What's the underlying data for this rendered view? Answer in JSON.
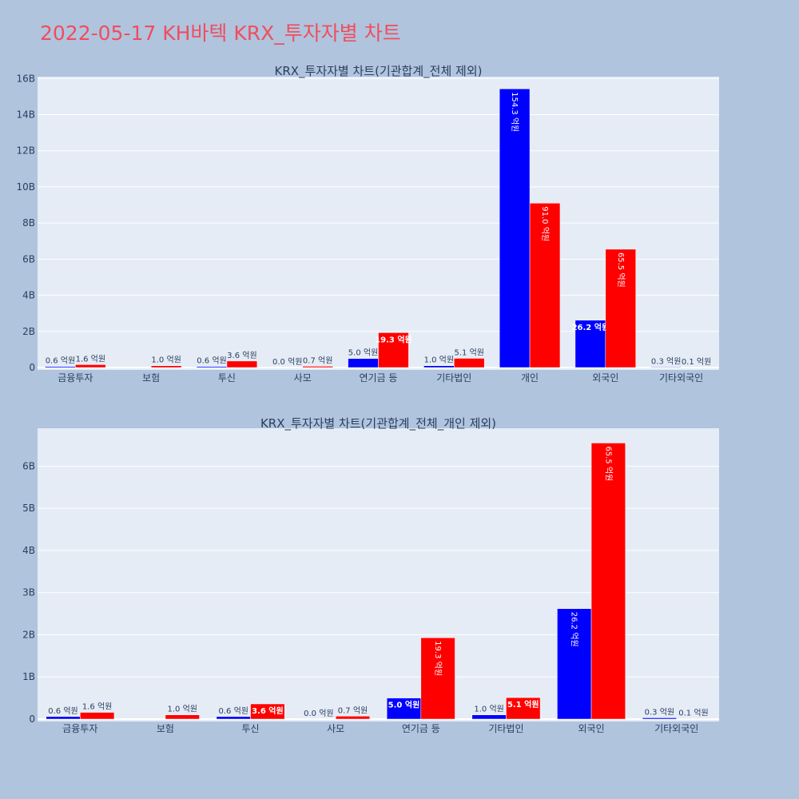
{
  "page": {
    "title": "2022-05-17 KH바텍 KRX_투자자별 차트"
  },
  "colors": {
    "background": "#b0c4de",
    "plot_bg": "#e5ecf6",
    "title": "#ef4e5f",
    "text": "#2a3f5f",
    "buy": "#0000ff",
    "sell": "#ff0000"
  },
  "chart_data": [
    {
      "type": "bar",
      "title": "KRX_투자자별 차트(기관합계_전체 제외)",
      "categories": [
        "금융투자",
        "보험",
        "투신",
        "사모",
        "연기금 등",
        "기타법인",
        "개인",
        "외국인",
        "기타외국인"
      ],
      "ylim": [
        0,
        16.1
      ],
      "ytick_values": [
        0,
        2,
        4,
        6,
        8,
        10,
        12,
        14,
        16
      ],
      "ytick_labels": [
        "0",
        "2B",
        "4B",
        "6B",
        "8B",
        "10B",
        "12B",
        "14B",
        "16B"
      ],
      "grid": true,
      "series": [
        {
          "color": "#0000ff",
          "values": [
            0.06,
            0,
            0.06,
            0.0,
            0.5,
            0.1,
            15.43,
            2.62,
            0.03
          ],
          "labels": [
            "0.6 억원",
            "",
            "0.6 억원",
            "0.0 억원",
            "5.0 억원",
            "1.0 억원",
            "154.3 억원",
            "26.2 억원",
            "0.3 억원"
          ]
        },
        {
          "color": "#ff0000",
          "values": [
            0.16,
            0.1,
            0.36,
            0.07,
            1.93,
            0.51,
            9.1,
            6.55,
            0.01
          ],
          "labels": [
            "1.6 억원",
            "1.0 억원",
            "3.6 억원",
            "0.7 억원",
            "19.3 억원",
            "5.1 억원",
            "91.0 억원",
            "65.5 억원",
            "0.1 억원"
          ]
        }
      ]
    },
    {
      "type": "bar",
      "title": "KRX_투자자별 차트(기관합계_전체_개인 제외)",
      "categories": [
        "금융투자",
        "보험",
        "투신",
        "사모",
        "연기금 등",
        "기타법인",
        "외국인",
        "기타외국인"
      ],
      "ylim": [
        0,
        6.9
      ],
      "ytick_values": [
        0,
        1,
        2,
        3,
        4,
        5,
        6
      ],
      "ytick_labels": [
        "0",
        "1B",
        "2B",
        "3B",
        "4B",
        "5B",
        "6B"
      ],
      "grid": true,
      "series": [
        {
          "color": "#0000ff",
          "values": [
            0.06,
            0,
            0.06,
            0.0,
            0.5,
            0.1,
            2.62,
            0.03
          ],
          "labels": [
            "0.6 억원",
            "",
            "0.6 억원",
            "0.0 억원",
            "5.0 억원",
            "1.0 억원",
            "26.2 억원",
            "0.3 억원"
          ]
        },
        {
          "color": "#ff0000",
          "values": [
            0.16,
            0.1,
            0.36,
            0.07,
            1.93,
            0.51,
            6.55,
            0.01
          ],
          "labels": [
            "1.6 억원",
            "1.0 억원",
            "3.6 억원",
            "0.7 억원",
            "19.3 억원",
            "5.1 억원",
            "65.5 억원",
            "0.1 억원"
          ]
        }
      ]
    }
  ]
}
